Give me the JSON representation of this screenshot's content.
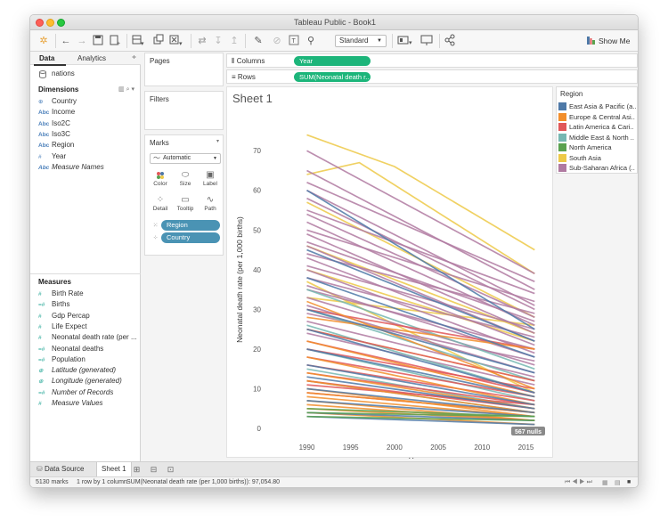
{
  "window": {
    "title": "Tableau Public - Book1"
  },
  "toolbar": {
    "fit": "Standard",
    "show_me": "Show Me"
  },
  "data_pane": {
    "tabs": {
      "data": "Data",
      "analytics": "Analytics"
    },
    "datasource": "nations",
    "dimensions_title": "Dimensions",
    "dimensions": [
      {
        "icon": "⊕",
        "kind": "geo",
        "label": "Country"
      },
      {
        "icon": "Abc",
        "kind": "abc",
        "label": "Income"
      },
      {
        "icon": "Abc",
        "kind": "abc",
        "label": "Iso2C"
      },
      {
        "icon": "Abc",
        "kind": "abc",
        "label": "Iso3C"
      },
      {
        "icon": "Abc",
        "kind": "abc",
        "label": "Region"
      },
      {
        "icon": "#",
        "kind": "hash",
        "label": "Year"
      },
      {
        "icon": "Abc",
        "kind": "abc",
        "label": "Measure Names",
        "italic": true
      }
    ],
    "measures_title": "Measures",
    "measures": [
      {
        "icon": "#",
        "label": "Birth Rate"
      },
      {
        "icon": "=#",
        "label": "Births"
      },
      {
        "icon": "#",
        "label": "Gdp Percap"
      },
      {
        "icon": "#",
        "label": "Life Expect"
      },
      {
        "icon": "#",
        "label": "Neonatal death rate (per ..."
      },
      {
        "icon": "=#",
        "label": "Neonatal deaths"
      },
      {
        "icon": "=#",
        "label": "Population"
      },
      {
        "icon": "⊕",
        "label": "Latitude (generated)",
        "italic": true
      },
      {
        "icon": "⊕",
        "label": "Longitude (generated)",
        "italic": true
      },
      {
        "icon": "=#",
        "label": "Number of Records",
        "italic": true
      },
      {
        "icon": "#",
        "label": "Measure Values",
        "italic": true
      }
    ]
  },
  "shelves": {
    "pages": "Pages",
    "filters": "Filters",
    "marks": "Marks",
    "mark_type": "Automatic",
    "mark_buttons": {
      "color": "Color",
      "size": "Size",
      "label": "Label",
      "detail": "Detail",
      "tooltip": "Tooltip",
      "path": "Path"
    },
    "mark_pills": {
      "region": "Region",
      "country": "Country"
    },
    "columns_label": "Columns",
    "columns_pill": "Year",
    "rows_label": "Rows",
    "rows_pill": "SUM(Neonatal death r.."
  },
  "sheet": {
    "title": "Sheet 1",
    "nulls_badge": "567 nulls"
  },
  "legend": {
    "title": "Region",
    "items": [
      {
        "label": "East Asia & Pacific (a..",
        "color": "#4e79a7"
      },
      {
        "label": "Europe & Central Asi..",
        "color": "#f28e2b"
      },
      {
        "label": "Latin America & Cari..",
        "color": "#e15759"
      },
      {
        "label": "Middle East & North ..",
        "color": "#76b7b2"
      },
      {
        "label": "North America",
        "color": "#59a14f"
      },
      {
        "label": "South Asia",
        "color": "#edc948"
      },
      {
        "label": "Sub-Saharan Africa (..",
        "color": "#b07aa1"
      }
    ]
  },
  "chart_data": {
    "type": "line",
    "xlabel": "Year",
    "ylabel": "Neonatal death rate (per 1,000 births)",
    "x_ticks": [
      1990,
      1995,
      2000,
      2005,
      2010,
      2015
    ],
    "y_ticks": [
      0,
      10,
      20,
      30,
      40,
      50,
      60,
      70
    ],
    "xlim": [
      1987,
      2018
    ],
    "ylim": [
      -2,
      77
    ],
    "x_range": [
      1990,
      2016
    ],
    "grid": false,
    "series": [
      {
        "region": "South Asia",
        "values": [
          [
            1990,
            74
          ],
          [
            2000,
            66
          ],
          [
            2016,
            45
          ]
        ]
      },
      {
        "region": "South Asia",
        "values": [
          [
            1990,
            64
          ],
          [
            1996,
            67
          ],
          [
            2016,
            39
          ]
        ]
      },
      {
        "region": "South Asia",
        "values": [
          [
            1990,
            57
          ],
          [
            2016,
            28
          ]
        ]
      },
      {
        "region": "South Asia",
        "values": [
          [
            1990,
            46
          ],
          [
            2016,
            24
          ]
        ]
      },
      {
        "region": "South Asia",
        "values": [
          [
            1990,
            40
          ],
          [
            2016,
            22
          ]
        ]
      },
      {
        "region": "South Asia",
        "values": [
          [
            1990,
            33
          ],
          [
            2016,
            26
          ]
        ]
      },
      {
        "region": "South Asia",
        "values": [
          [
            1990,
            25
          ],
          [
            2016,
            12
          ]
        ]
      },
      {
        "region": "South Asia",
        "values": [
          [
            1990,
            37
          ],
          [
            2016,
            9
          ]
        ]
      },
      {
        "region": "Sub-Saharan Africa",
        "values": [
          [
            1990,
            70
          ],
          [
            2016,
            39
          ]
        ]
      },
      {
        "region": "Sub-Saharan Africa",
        "values": [
          [
            1990,
            65
          ],
          [
            2016,
            35
          ]
        ]
      },
      {
        "region": "Sub-Saharan Africa",
        "values": [
          [
            1990,
            62
          ],
          [
            2016,
            37
          ]
        ]
      },
      {
        "region": "Sub-Saharan Africa",
        "values": [
          [
            1990,
            60
          ],
          [
            2016,
            31
          ]
        ]
      },
      {
        "region": "Sub-Saharan Africa",
        "values": [
          [
            1990,
            58
          ],
          [
            2016,
            30
          ]
        ]
      },
      {
        "region": "Sub-Saharan Africa",
        "values": [
          [
            1990,
            55
          ],
          [
            2016,
            34
          ]
        ]
      },
      {
        "region": "Sub-Saharan Africa",
        "values": [
          [
            1990,
            54
          ],
          [
            2016,
            28
          ]
        ]
      },
      {
        "region": "Sub-Saharan Africa",
        "values": [
          [
            1990,
            52
          ],
          [
            2016,
            26
          ]
        ]
      },
      {
        "region": "Sub-Saharan Africa",
        "values": [
          [
            1990,
            50
          ],
          [
            2016,
            32
          ]
        ]
      },
      {
        "region": "Sub-Saharan Africa",
        "values": [
          [
            1990,
            49
          ],
          [
            2016,
            24
          ]
        ]
      },
      {
        "region": "Sub-Saharan Africa",
        "values": [
          [
            1990,
            47
          ],
          [
            2016,
            27
          ]
        ]
      },
      {
        "region": "Sub-Saharan Africa",
        "values": [
          [
            1990,
            46
          ],
          [
            2016,
            22
          ]
        ]
      },
      {
        "region": "Sub-Saharan Africa",
        "values": [
          [
            1990,
            44
          ],
          [
            2016,
            29
          ]
        ]
      },
      {
        "region": "Sub-Saharan Africa",
        "values": [
          [
            1990,
            43
          ],
          [
            2016,
            21
          ]
        ]
      },
      {
        "region": "Sub-Saharan Africa",
        "values": [
          [
            1990,
            41
          ],
          [
            2016,
            25
          ]
        ]
      },
      {
        "region": "Sub-Saharan Africa",
        "values": [
          [
            1990,
            40
          ],
          [
            2016,
            19
          ]
        ]
      },
      {
        "region": "Sub-Saharan Africa",
        "values": [
          [
            1990,
            38
          ],
          [
            2016,
            23
          ]
        ]
      },
      {
        "region": "Sub-Saharan Africa",
        "values": [
          [
            1990,
            36
          ],
          [
            2016,
            18
          ]
        ]
      },
      {
        "region": "Sub-Saharan Africa",
        "values": [
          [
            1990,
            35
          ],
          [
            2016,
            20
          ]
        ]
      },
      {
        "region": "Sub-Saharan Africa",
        "values": [
          [
            1990,
            33
          ],
          [
            2016,
            16
          ]
        ]
      },
      {
        "region": "Sub-Saharan Africa",
        "values": [
          [
            1990,
            31
          ],
          [
            2016,
            14
          ]
        ]
      },
      {
        "region": "Sub-Saharan Africa",
        "values": [
          [
            1990,
            29
          ],
          [
            2016,
            17
          ]
        ]
      },
      {
        "region": "Sub-Saharan Africa",
        "values": [
          [
            1990,
            27
          ],
          [
            2016,
            13
          ]
        ]
      },
      {
        "region": "Sub-Saharan Africa",
        "values": [
          [
            1990,
            24
          ],
          [
            2016,
            11
          ]
        ]
      },
      {
        "region": "Middle East & North Africa",
        "values": [
          [
            1990,
            35
          ],
          [
            2016,
            15
          ]
        ]
      },
      {
        "region": "Middle East & North Africa",
        "values": [
          [
            1990,
            30
          ],
          [
            2016,
            12
          ]
        ]
      },
      {
        "region": "Middle East & North Africa",
        "values": [
          [
            1990,
            26
          ],
          [
            2016,
            9
          ]
        ]
      },
      {
        "region": "Middle East & North Africa",
        "values": [
          [
            1990,
            20
          ],
          [
            2016,
            7
          ]
        ]
      },
      {
        "region": "Middle East & North Africa",
        "values": [
          [
            1990,
            15
          ],
          [
            2016,
            5
          ]
        ]
      },
      {
        "region": "Middle East & North Africa",
        "values": [
          [
            1990,
            12
          ],
          [
            2016,
            4
          ]
        ]
      },
      {
        "region": "Latin America & Caribbean",
        "values": [
          [
            1990,
            30
          ],
          [
            2016,
            20
          ]
        ]
      },
      {
        "region": "Latin America & Caribbean",
        "values": [
          [
            1990,
            25
          ],
          [
            2016,
            12
          ]
        ]
      },
      {
        "region": "Latin America & Caribbean",
        "values": [
          [
            1990,
            22
          ],
          [
            2016,
            9
          ]
        ]
      },
      {
        "region": "Latin America & Caribbean",
        "values": [
          [
            1990,
            20
          ],
          [
            2016,
            10
          ]
        ]
      },
      {
        "region": "Latin America & Caribbean",
        "values": [
          [
            1990,
            18
          ],
          [
            2016,
            8
          ]
        ]
      },
      {
        "region": "Latin America & Caribbean",
        "values": [
          [
            1990,
            16
          ],
          [
            2016,
            7
          ]
        ]
      },
      {
        "region": "Latin America & Caribbean",
        "values": [
          [
            1990,
            14
          ],
          [
            2016,
            6
          ]
        ]
      },
      {
        "region": "Latin America & Caribbean",
        "values": [
          [
            1990,
            12
          ],
          [
            2016,
            5
          ]
        ]
      },
      {
        "region": "Latin America & Caribbean",
        "values": [
          [
            1990,
            11
          ],
          [
            2016,
            6
          ]
        ]
      },
      {
        "region": "Latin America & Caribbean",
        "values": [
          [
            1990,
            9
          ],
          [
            2016,
            4
          ]
        ]
      },
      {
        "region": "Europe & Central Asia",
        "values": [
          [
            1990,
            32
          ],
          [
            2016,
            10
          ]
        ]
      },
      {
        "region": "Europe & Central Asia",
        "values": [
          [
            1990,
            28
          ],
          [
            2016,
            20
          ]
        ]
      },
      {
        "region": "Europe & Central Asia",
        "values": [
          [
            1990,
            22
          ],
          [
            2016,
            8
          ]
        ]
      },
      {
        "region": "Europe & Central Asia",
        "values": [
          [
            1990,
            18
          ],
          [
            2016,
            6
          ]
        ]
      },
      {
        "region": "Europe & Central Asia",
        "values": [
          [
            1990,
            14
          ],
          [
            2016,
            5
          ]
        ]
      },
      {
        "region": "Europe & Central Asia",
        "values": [
          [
            1990,
            12
          ],
          [
            2016,
            4
          ]
        ]
      },
      {
        "region": "Europe & Central Asia",
        "values": [
          [
            1990,
            10
          ],
          [
            2016,
            3
          ]
        ]
      },
      {
        "region": "Europe & Central Asia",
        "values": [
          [
            1990,
            9
          ],
          [
            2016,
            4
          ]
        ]
      },
      {
        "region": "Europe & Central Asia",
        "values": [
          [
            1990,
            8
          ],
          [
            2016,
            3
          ]
        ]
      },
      {
        "region": "Europe & Central Asia",
        "values": [
          [
            1990,
            7
          ],
          [
            2016,
            2
          ]
        ]
      },
      {
        "region": "Europe & Central Asia",
        "values": [
          [
            1990,
            6
          ],
          [
            2016,
            2
          ]
        ]
      },
      {
        "region": "Europe & Central Asia",
        "values": [
          [
            1990,
            5
          ],
          [
            2016,
            2
          ]
        ]
      },
      {
        "region": "Europe & Central Asia",
        "values": [
          [
            1990,
            4
          ],
          [
            2016,
            1
          ]
        ]
      },
      {
        "region": "East Asia & Pacific",
        "values": [
          [
            1990,
            60
          ],
          [
            2016,
            25
          ]
        ]
      },
      {
        "region": "East Asia & Pacific",
        "values": [
          [
            1990,
            45
          ],
          [
            2016,
            22
          ]
        ]
      },
      {
        "region": "East Asia & Pacific",
        "values": [
          [
            1990,
            38
          ],
          [
            2016,
            18
          ]
        ]
      },
      {
        "region": "East Asia & Pacific",
        "values": [
          [
            1990,
            30
          ],
          [
            2016,
            14
          ]
        ]
      },
      {
        "region": "East Asia & Pacific",
        "values": [
          [
            1990,
            25
          ],
          [
            2016,
            9
          ]
        ]
      },
      {
        "region": "East Asia & Pacific",
        "values": [
          [
            1990,
            20
          ],
          [
            2016,
            8
          ]
        ]
      },
      {
        "region": "East Asia & Pacific",
        "values": [
          [
            1990,
            16
          ],
          [
            2016,
            6
          ]
        ]
      },
      {
        "region": "East Asia & Pacific",
        "values": [
          [
            1990,
            13
          ],
          [
            2016,
            5
          ]
        ]
      },
      {
        "region": "East Asia & Pacific",
        "values": [
          [
            1990,
            10
          ],
          [
            2016,
            4
          ]
        ]
      },
      {
        "region": "East Asia & Pacific",
        "values": [
          [
            1990,
            7
          ],
          [
            2016,
            3
          ]
        ]
      },
      {
        "region": "East Asia & Pacific",
        "values": [
          [
            1990,
            4
          ],
          [
            2016,
            2
          ]
        ]
      },
      {
        "region": "East Asia & Pacific",
        "values": [
          [
            1990,
            3
          ],
          [
            2016,
            1
          ]
        ]
      },
      {
        "region": "North America",
        "values": [
          [
            1990,
            5
          ],
          [
            2016,
            3
          ]
        ]
      },
      {
        "region": "North America",
        "values": [
          [
            1990,
            4
          ],
          [
            2016,
            3
          ]
        ]
      },
      {
        "region": "North America",
        "values": [
          [
            1990,
            3
          ],
          [
            2016,
            2
          ]
        ]
      }
    ]
  },
  "sheetbar": {
    "data_source": "Data Source",
    "sheet1": "Sheet 1"
  },
  "status": {
    "marks": "5130 marks",
    "dims": "1 row by 1 column",
    "sum": "SUM(Neonatal death rate (per 1,000 births)): 97,054.80"
  }
}
